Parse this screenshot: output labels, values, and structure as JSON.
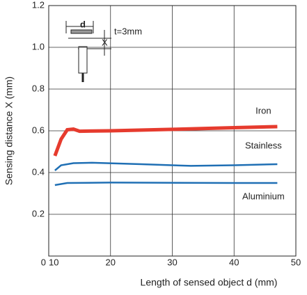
{
  "chart_data": {
    "type": "line",
    "x_label": "Length of sensed object d (mm)",
    "y_label": "Sensing distance X (mm)",
    "xlim": [
      10,
      50
    ],
    "xticks": [
      10,
      20,
      30,
      40,
      50
    ],
    "ylim": [
      0,
      1.2
    ],
    "yticks": [
      0,
      0.2,
      0.4,
      0.6,
      0.8,
      {
        "value": 1.0,
        "label": "1.0"
      },
      1.2
    ],
    "grid": true,
    "series": [
      {
        "name": "Iron",
        "color": "#e63b2e",
        "x": [
          11,
          12,
          13,
          14,
          15,
          20,
          30,
          40,
          47
        ],
        "values": [
          0.48,
          0.56,
          0.605,
          0.608,
          0.598,
          0.6,
          0.607,
          0.615,
          0.62
        ]
      },
      {
        "name": "Stainless",
        "color": "#1f6fb4",
        "x": [
          11,
          12,
          14,
          17,
          25,
          33,
          40,
          47
        ],
        "values": [
          0.41,
          0.435,
          0.445,
          0.447,
          0.44,
          0.432,
          0.435,
          0.44
        ]
      },
      {
        "name": "Aluminium",
        "color": "#1f6fb4",
        "x": [
          11,
          13,
          20,
          40,
          47
        ],
        "values": [
          0.34,
          0.35,
          0.352,
          0.35,
          0.35
        ]
      }
    ],
    "diagram_labels": [
      "d",
      "X",
      "t=3mm"
    ]
  }
}
